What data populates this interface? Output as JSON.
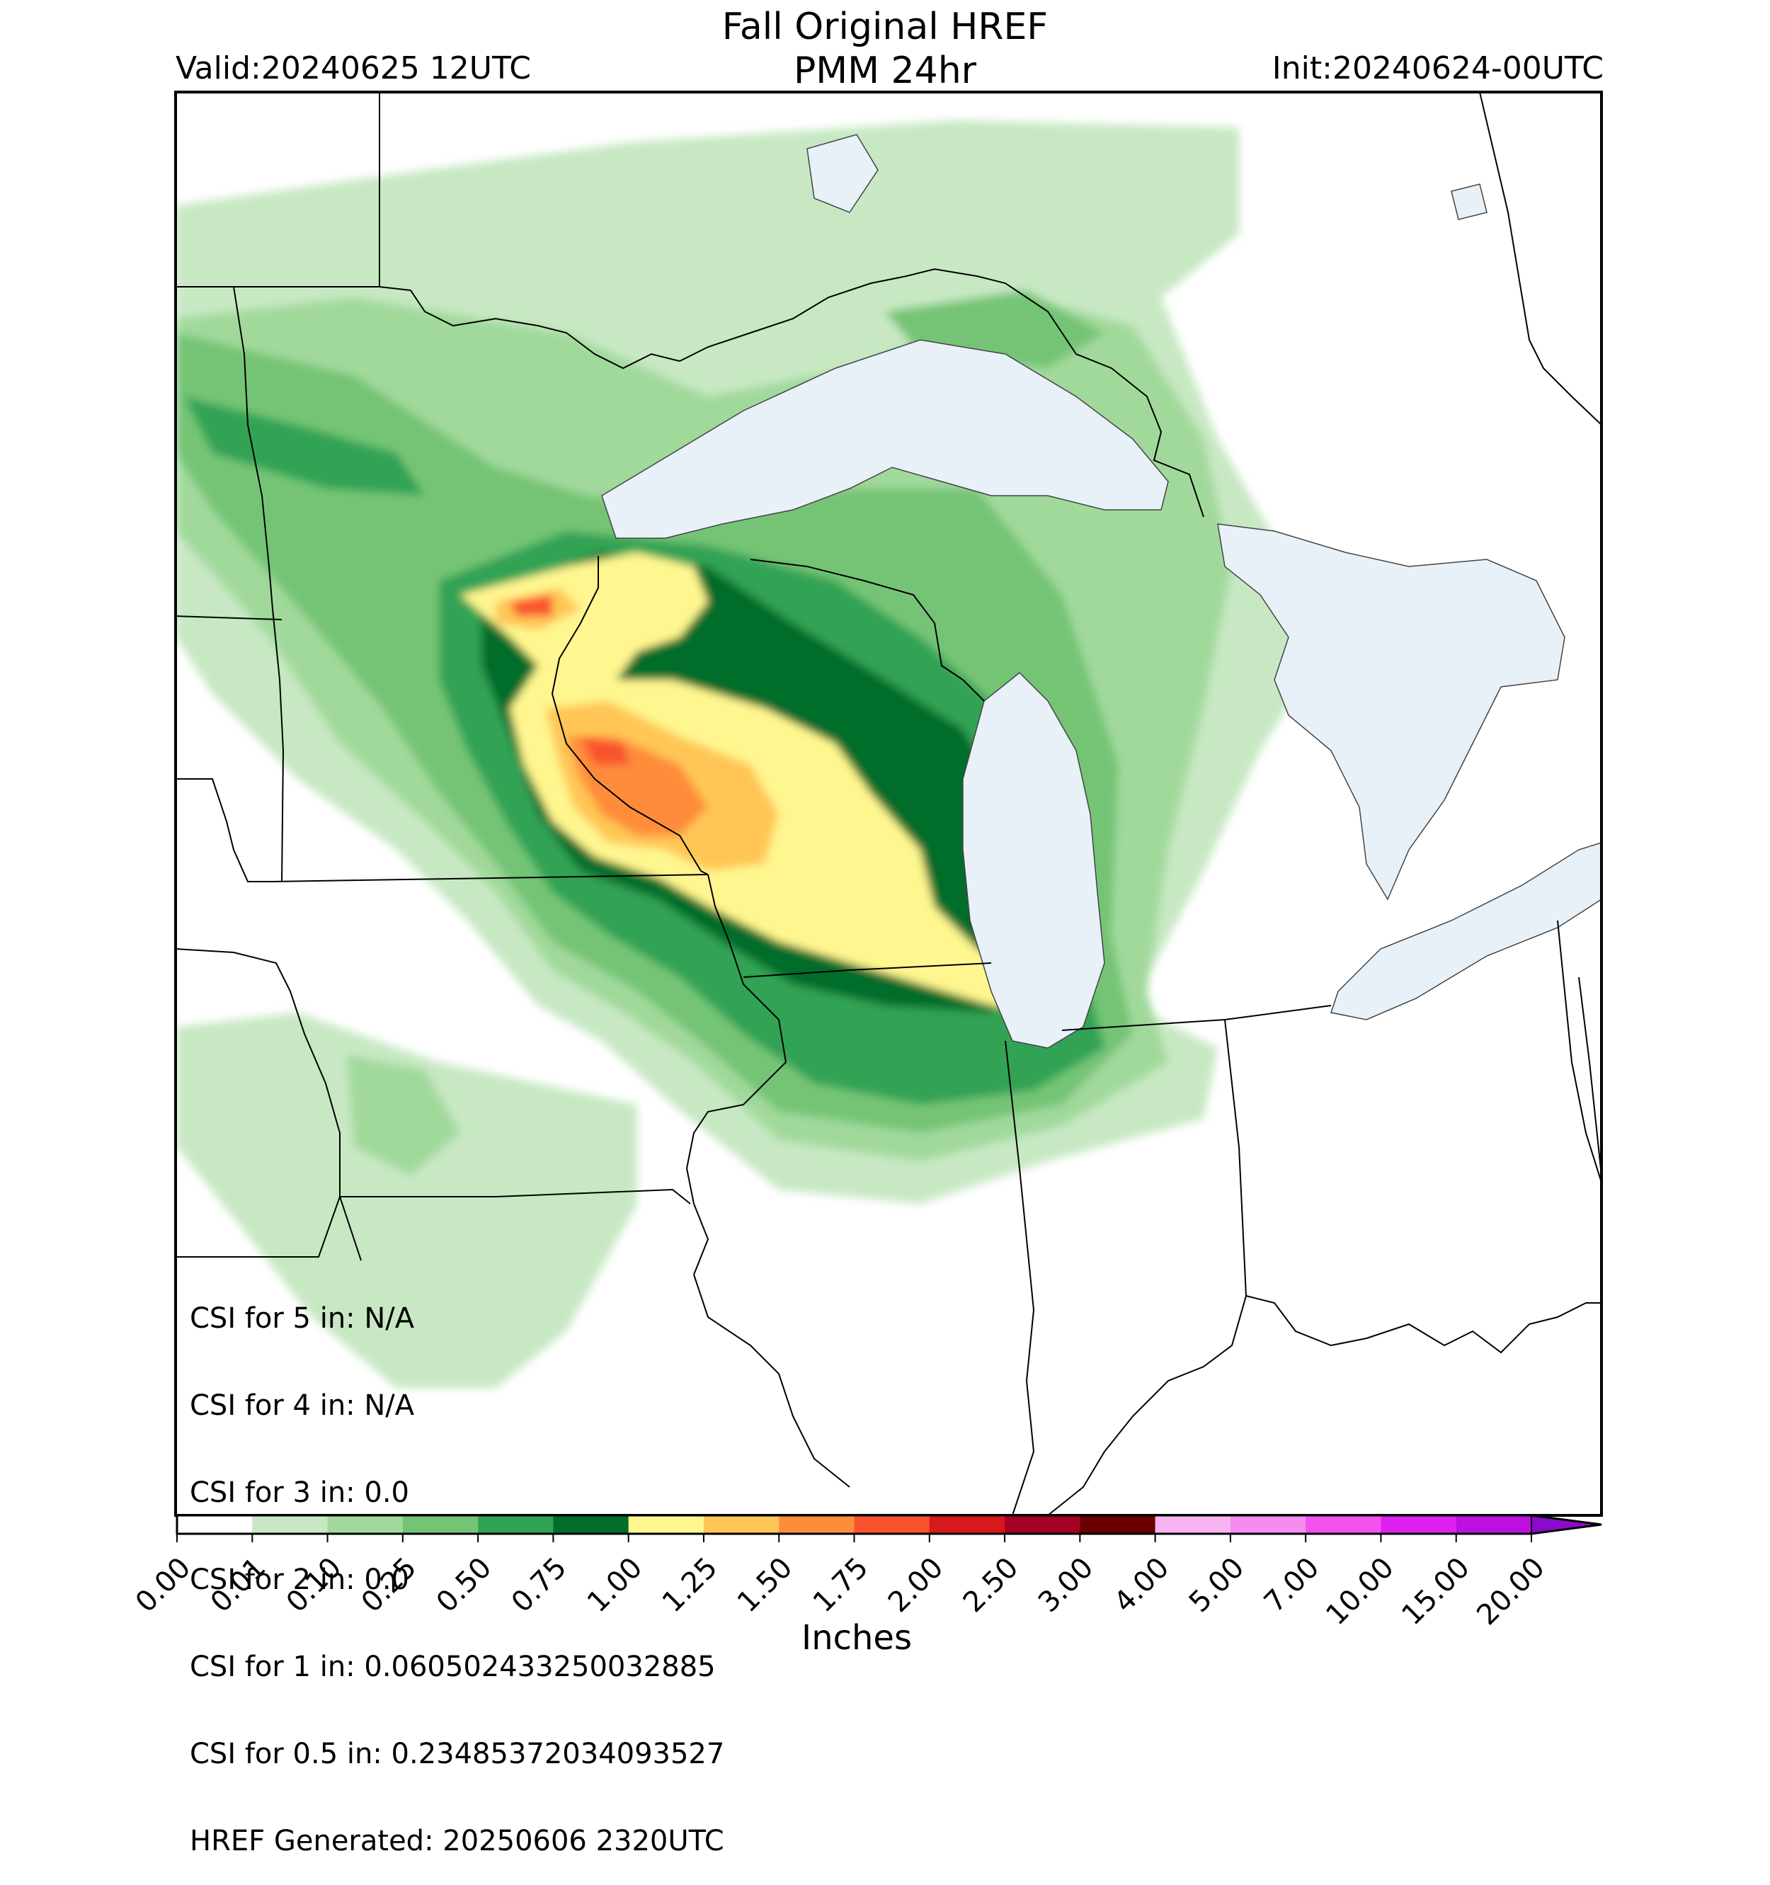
{
  "header": {
    "title_line1": "Fall Original HREF",
    "title_line2": "PMM 24hr",
    "valid_label": "Valid:20240625 12UTC",
    "init_label": "Init:20240624-00UTC"
  },
  "stats": [
    "CSI for 5 in: N/A",
    "CSI for 4 in: N/A",
    "CSI for 3 in: 0.0",
    "CSI for 2 in: 0.0",
    "CSI for 1 in: 0.060502433250032885",
    "CSI for 0.5 in: 0.23485372034093527",
    "HREF Generated: 20250606 2320UTC"
  ],
  "colorbar": {
    "label": "Inches",
    "ticks": [
      "0.00",
      "0.01",
      "0.10",
      "0.25",
      "0.50",
      "0.75",
      "1.00",
      "1.25",
      "1.50",
      "1.75",
      "2.00",
      "2.50",
      "3.00",
      "4.00",
      "5.00",
      "7.00",
      "10.00",
      "15.00",
      "20.00"
    ],
    "colors": [
      "#ffffff",
      "#c7e8c3",
      "#a1d99b",
      "#74c476",
      "#31a354",
      "#006d2c",
      "#fff68f",
      "#ffc655",
      "#ff8c3b",
      "#f9522d",
      "#d7191c",
      "#a50026",
      "#6b0000",
      "#f8b4f2",
      "#f58cf0",
      "#f352ef",
      "#df1fee",
      "#bd0fde",
      "#8b0bcb"
    ]
  },
  "colors": {
    "lake": "#e8f0f8",
    "border": "#000000"
  }
}
